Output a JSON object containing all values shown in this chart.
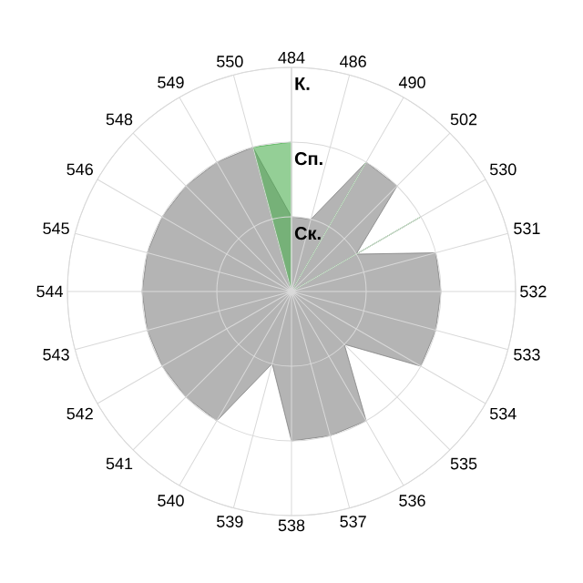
{
  "chart_data": {
    "type": "radar",
    "categories": [
      "484",
      "486",
      "490",
      "502",
      "530",
      "531",
      "532",
      "533",
      "534",
      "535",
      "536",
      "537",
      "538",
      "539",
      "540",
      "541",
      "542",
      "543",
      "544",
      "545",
      "546",
      "548",
      "549",
      "550"
    ],
    "series": [
      {
        "color": "#b4b4b4",
        "values": [
          1,
          1,
          2,
          2,
          1,
          2,
          2,
          2,
          2,
          1,
          2,
          2,
          2,
          1,
          2,
          2,
          2,
          2,
          2,
          2,
          2,
          2,
          2,
          2
        ]
      },
      {
        "color": "#4caf50",
        "values": [
          2,
          0,
          2,
          0,
          2,
          0,
          0,
          0,
          0,
          0,
          0,
          0,
          0,
          0,
          0,
          0,
          0,
          0,
          0,
          0,
          0,
          0,
          0,
          2
        ]
      }
    ],
    "ylim": [
      0,
      3
    ],
    "yticks": [
      {
        "value": 1,
        "label": "Ск."
      },
      {
        "value": 2,
        "label": "Сп."
      },
      {
        "value": 3,
        "label": "К."
      }
    ],
    "grid": true,
    "marker": "none"
  }
}
